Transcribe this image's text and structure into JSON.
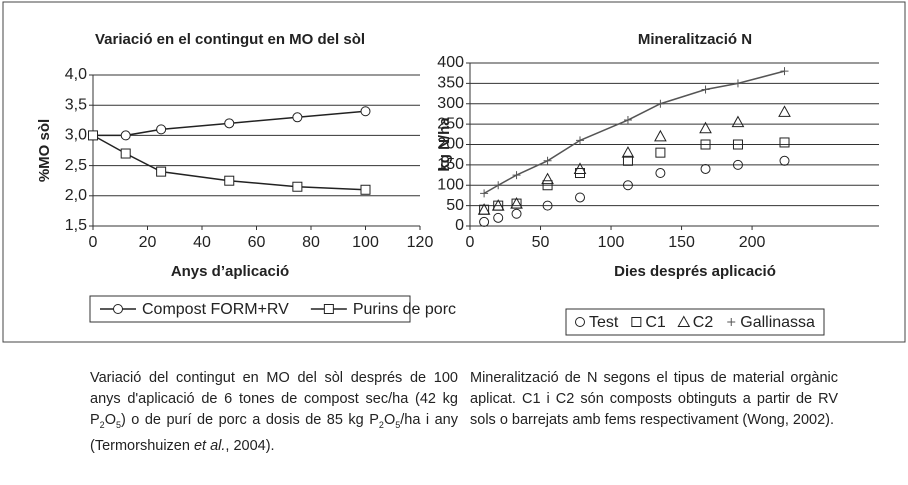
{
  "chart_data": [
    {
      "type": "line",
      "title": "Variació en el contingut en MO del sòl",
      "xlabel": "Anys d’aplicació",
      "ylabel": "%MO sòl",
      "x": [
        0,
        12,
        25,
        50,
        75,
        100
      ],
      "series": [
        {
          "name": "Compost FORM+RV",
          "color": "#222222",
          "marker": "circle",
          "line": true,
          "values": [
            3.0,
            3.0,
            3.1,
            3.2,
            3.3,
            3.4
          ]
        },
        {
          "name": "Purins de porc",
          "color": "#222222",
          "marker": "square",
          "line": true,
          "values": [
            3.0,
            2.7,
            2.4,
            2.25,
            2.15,
            2.1
          ]
        }
      ],
      "xlim": [
        0,
        120
      ],
      "xticks": [
        0,
        20,
        40,
        60,
        80,
        100,
        120
      ],
      "ylim": [
        1.5,
        4.0
      ],
      "yticks": [
        {
          "value": 1.5,
          "label": "1,5"
        },
        {
          "value": 2.0,
          "label": "2,0"
        },
        {
          "value": 2.5,
          "label": "2,5"
        },
        {
          "value": 3.0,
          "label": "3,0"
        },
        {
          "value": 3.5,
          "label": "3,5"
        },
        {
          "value": 4.0,
          "label": "4,0"
        }
      ],
      "grid": true
    },
    {
      "type": "scatter",
      "title": "Mineralització N",
      "xlabel": "Dies després aplicació",
      "ylabel": "kg N/ha",
      "x": [
        10,
        20,
        33,
        55,
        78,
        112,
        135,
        167,
        190,
        223
      ],
      "series": [
        {
          "name": "Test",
          "color": "#222222",
          "marker": "circle",
          "line": false,
          "values": [
            10,
            20,
            30,
            50,
            70,
            100,
            130,
            140,
            150,
            160
          ]
        },
        {
          "name": "C1",
          "color": "#222222",
          "marker": "square",
          "line": false,
          "values": [
            40,
            50,
            55,
            100,
            130,
            160,
            180,
            200,
            200,
            205
          ]
        },
        {
          "name": "C2",
          "color": "#222222",
          "marker": "triangle",
          "line": false,
          "values": [
            40,
            50,
            55,
            115,
            140,
            180,
            220,
            240,
            255,
            280
          ]
        },
        {
          "name": "Gallinassa",
          "color": "#555555",
          "marker": "plus",
          "line": true,
          "values": [
            80,
            100,
            125,
            160,
            210,
            260,
            300,
            335,
            350,
            380
          ]
        }
      ],
      "xlim": [
        0,
        290
      ],
      "xticks": [
        0,
        50,
        100,
        150,
        200
      ],
      "ylim": [
        0,
        400
      ],
      "yticks": [
        0,
        50,
        100,
        150,
        200,
        250,
        300,
        350,
        400
      ],
      "grid": true
    }
  ],
  "captions": [
    [
      "Variació del contingut en MO del sòl després de 100 anys d'aplicació de 6 tones de compost sec/ha (42 kg P",
      "2",
      "O",
      "5",
      ") o de purí de porc a dosis de 85 kg P",
      "2",
      "O",
      "5",
      "/ha i any (Termorshuizen ",
      "et al.",
      ", 2004)."
    ],
    [
      "Mineralització de N segons el tipus de material orgànic aplicat. C1 i C2 són composts obtinguts a partir de RV sols o barrejats amb fems respectivament (Wong, 2002)."
    ]
  ]
}
